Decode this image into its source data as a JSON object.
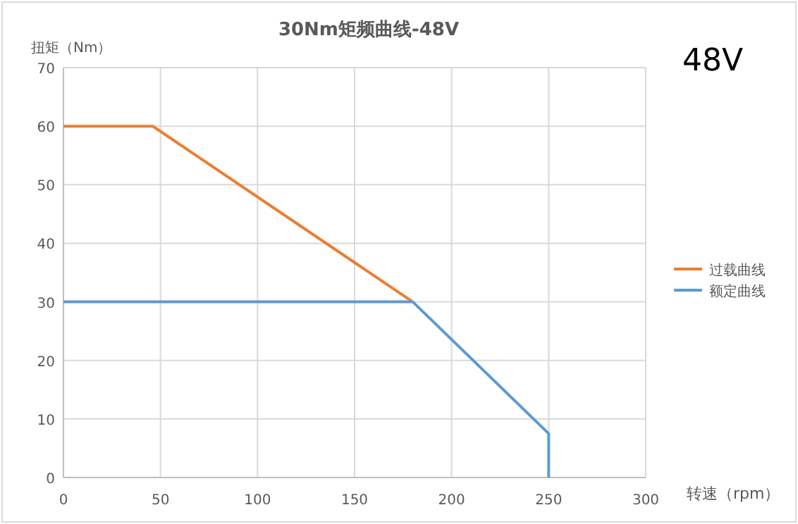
{
  "chart_data": {
    "type": "line",
    "title": "30Nm矩频曲线-48V",
    "ylabel": "扭矩（Nm）",
    "xlabel": "转速（rpm）",
    "annotations": [
      "48V"
    ],
    "xlim": [
      0,
      300
    ],
    "xticks": [
      0,
      50,
      100,
      150,
      200,
      250,
      300
    ],
    "ylim": [
      0,
      70
    ],
    "yticks": [
      0,
      10,
      20,
      30,
      40,
      50,
      60,
      70
    ],
    "grid": true,
    "legend": "right",
    "marker": "none",
    "line_style": "solid",
    "series": [
      {
        "name": "过载曲线",
        "color": "#ed7d31",
        "x": [
          0,
          46,
          180
        ],
        "values": [
          60,
          60,
          30
        ]
      },
      {
        "name": "额定曲线",
        "color": "#5b9bd5",
        "x": [
          0,
          180,
          250,
          250
        ],
        "values": [
          30,
          30,
          7.5,
          0
        ]
      }
    ]
  }
}
